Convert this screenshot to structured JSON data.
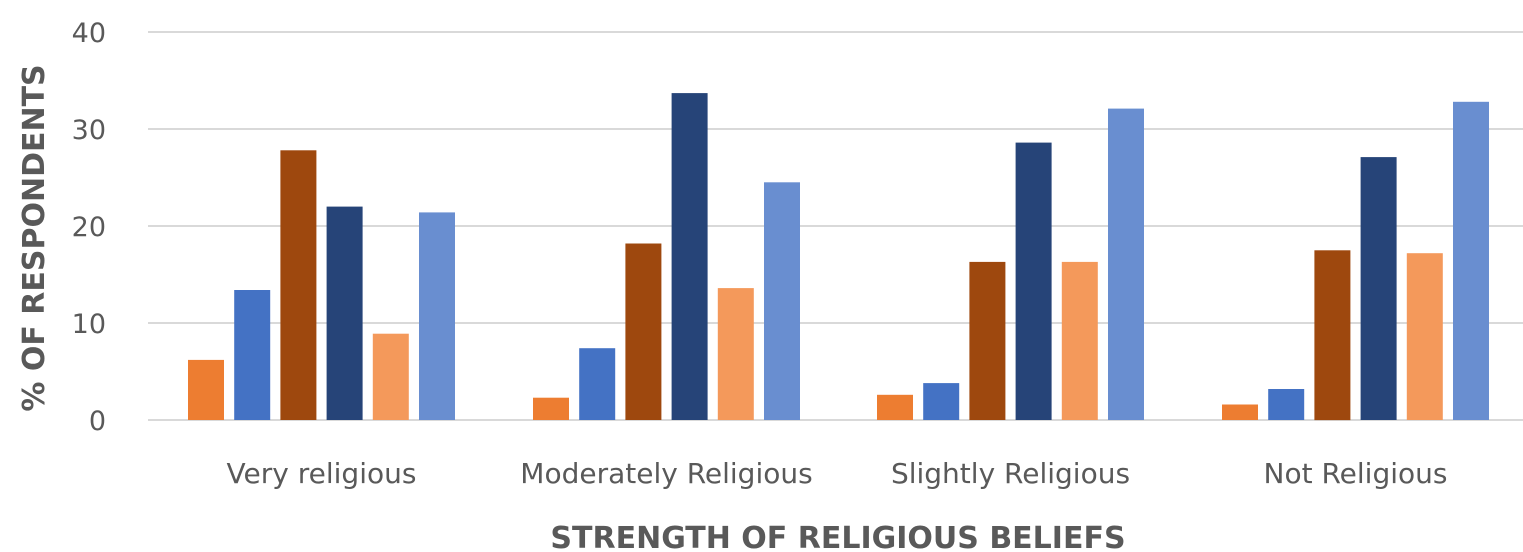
{
  "chart_data": {
    "type": "bar",
    "title": "",
    "xlabel": "STRENGTH OF RELIGIOUS BELIEFS",
    "ylabel": "% OF RESPONDENTS",
    "ylim": [
      0,
      40
    ],
    "yticks": [
      0,
      10,
      20,
      30,
      40
    ],
    "grid": true,
    "legend": "none",
    "categories": [
      "Very religious",
      "Moderately Religious",
      "Slightly Religious",
      "Not Religious"
    ],
    "series": [
      {
        "color": "#ed7d31",
        "values": [
          6.2,
          2.3,
          2.6,
          1.6
        ]
      },
      {
        "color": "#4472c4",
        "values": [
          13.4,
          7.4,
          3.8,
          3.2
        ]
      },
      {
        "color": "#9e480e",
        "values": [
          27.8,
          18.2,
          16.3,
          17.5
        ]
      },
      {
        "color": "#264478",
        "values": [
          22.0,
          33.7,
          28.6,
          27.1
        ]
      },
      {
        "color": "#f4995b",
        "values": [
          8.9,
          13.6,
          16.3,
          17.2
        ]
      },
      {
        "color": "#698ed0",
        "values": [
          21.4,
          24.5,
          32.1,
          32.8
        ]
      }
    ]
  }
}
